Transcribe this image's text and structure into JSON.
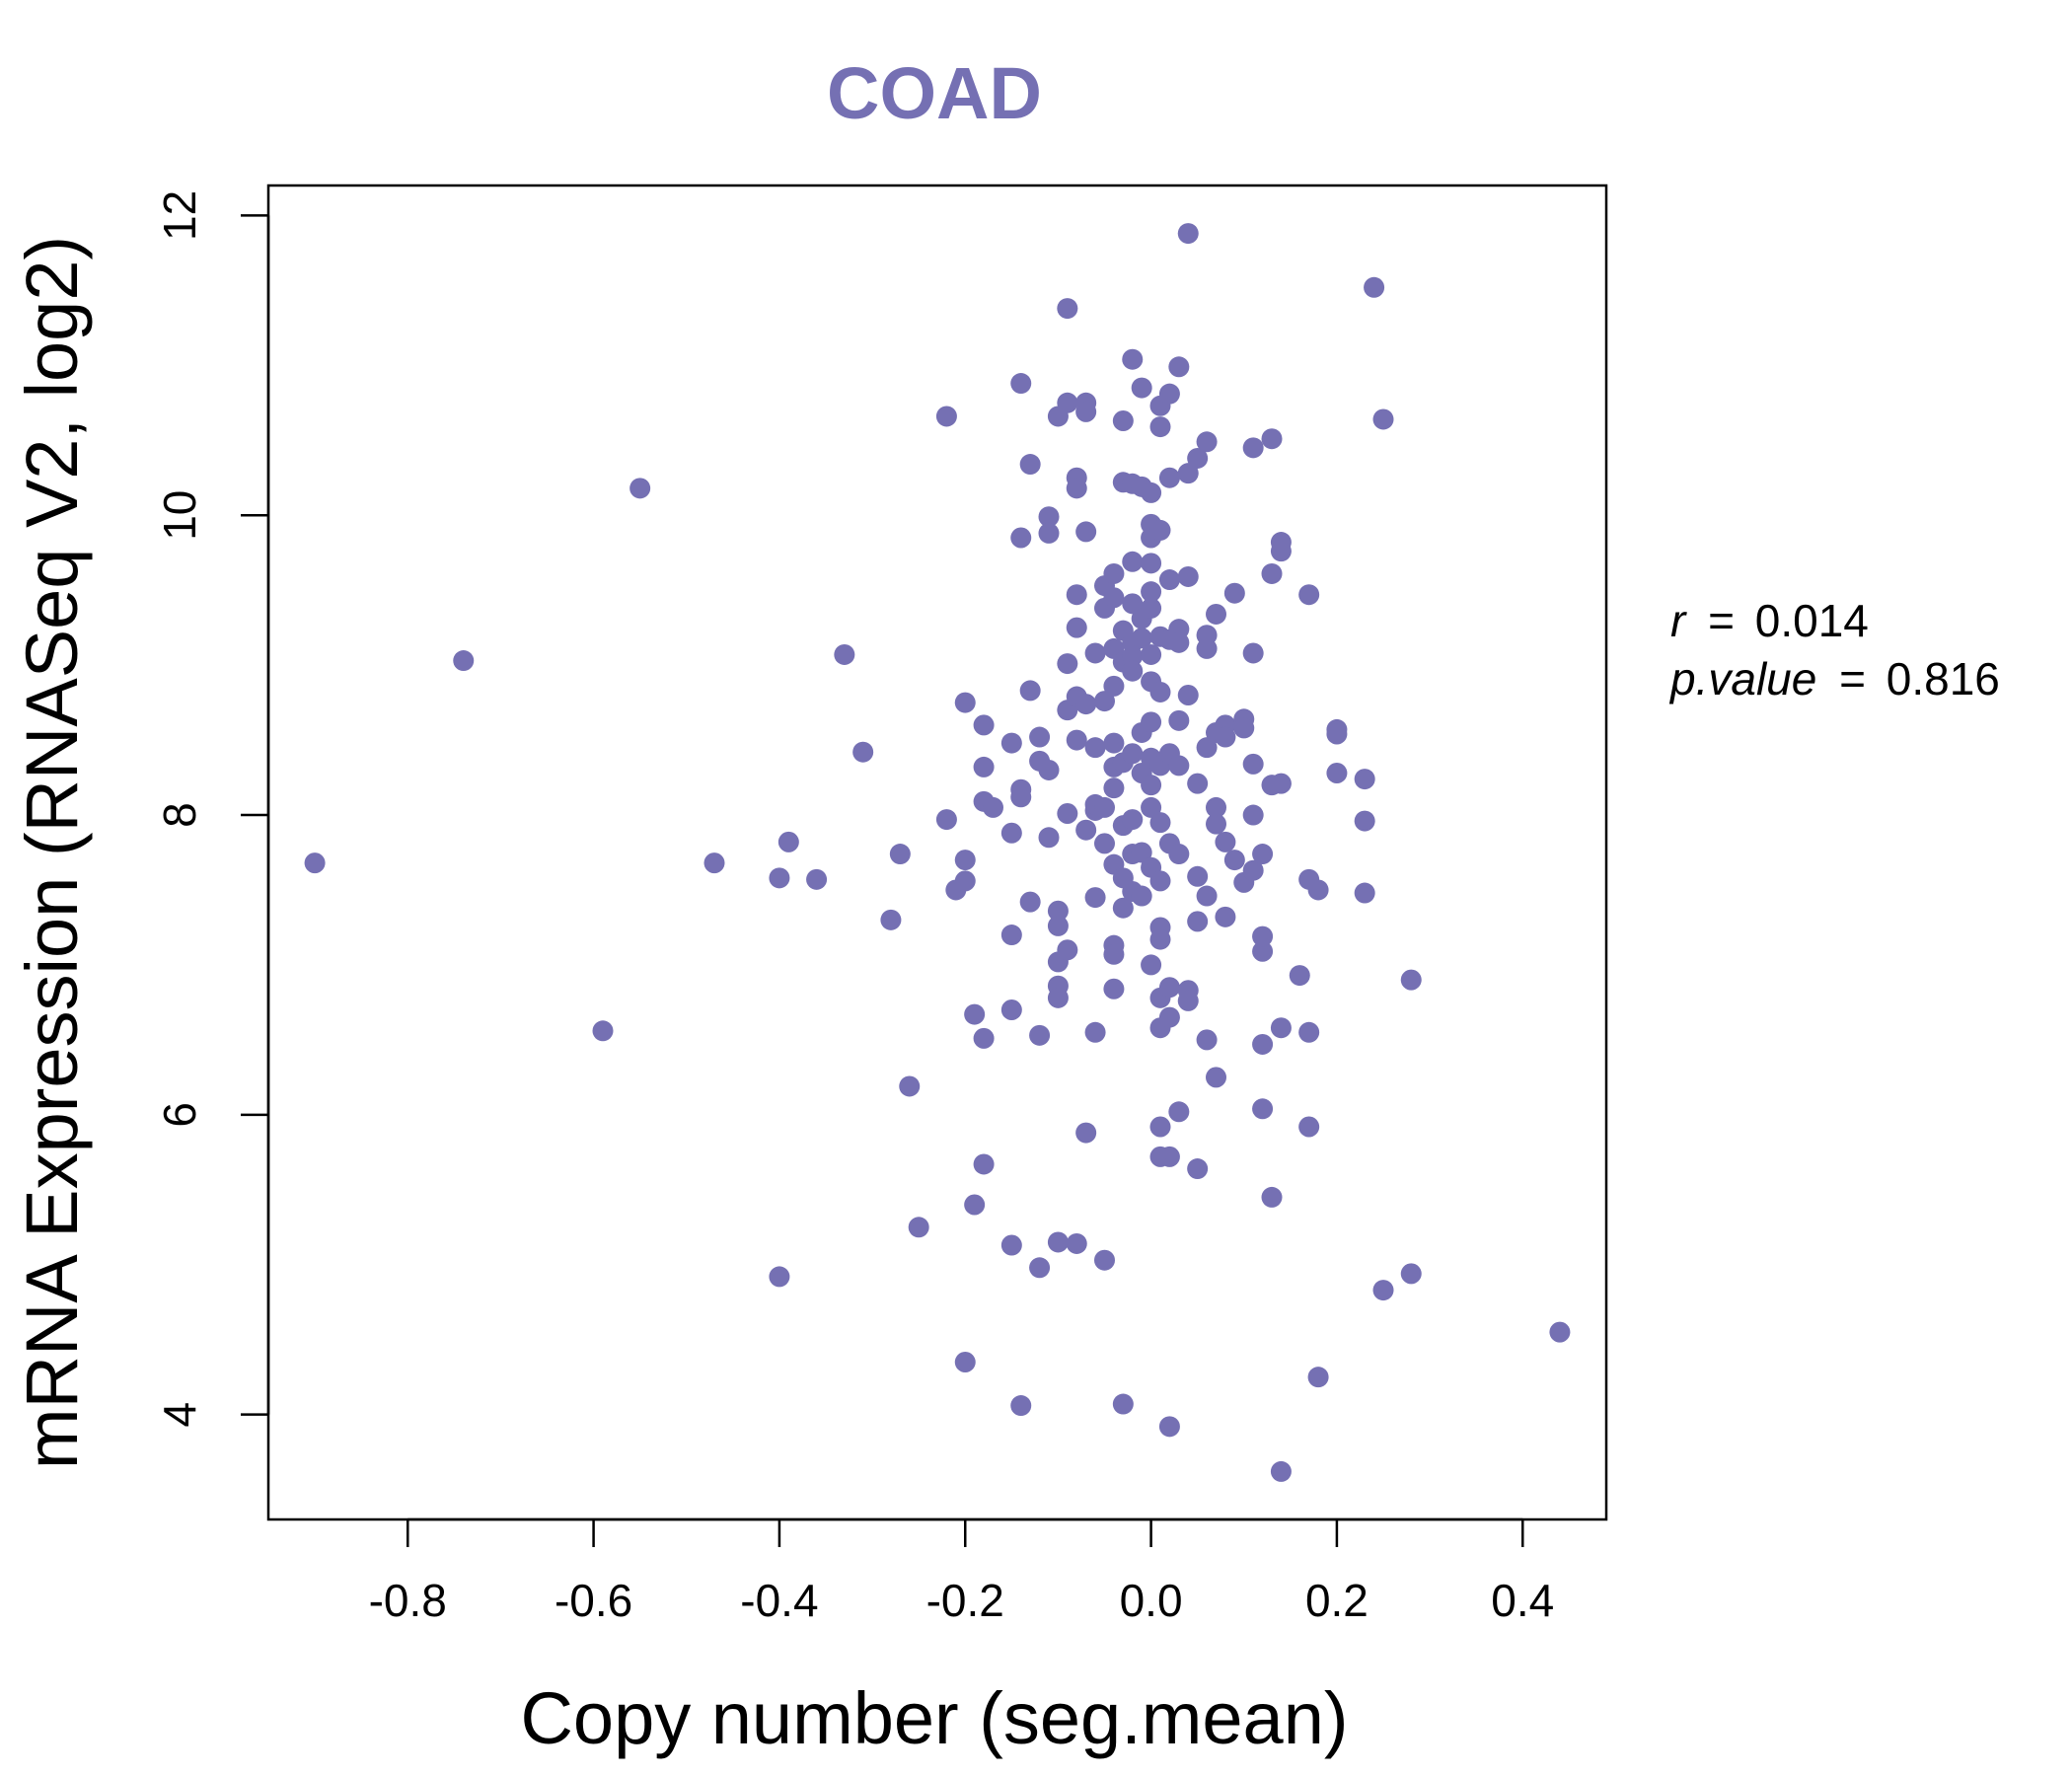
{
  "chart_data": {
    "type": "scatter",
    "title": "COAD",
    "xlabel": "Copy number (seg.mean)",
    "ylabel": "mRNA Expression (RNASeq V2, log2)",
    "xlim": [
      -0.95,
      0.49
    ],
    "ylim": [
      3.3,
      12.2
    ],
    "x_ticks": [
      -0.8,
      -0.6,
      -0.4,
      -0.2,
      0.0,
      0.2,
      0.4
    ],
    "x_tick_labels": [
      "-0.8",
      "-0.6",
      "-0.4",
      "-0.2",
      "0.0",
      "0.2",
      "0.4"
    ],
    "y_ticks": [
      4,
      6,
      8,
      10,
      12
    ],
    "y_tick_labels": [
      "4",
      "6",
      "8",
      "10",
      "12"
    ],
    "point_color": "#7570b3",
    "stats": {
      "r_label": "r",
      "r_value": "0.014",
      "p_label": "p.value",
      "p_value": "0.816",
      "equals": "="
    },
    "points": [
      [
        -0.9,
        7.68
      ],
      [
        -0.74,
        9.03
      ],
      [
        -0.59,
        6.56
      ],
      [
        -0.55,
        10.18
      ],
      [
        -0.47,
        7.68
      ],
      [
        -0.4,
        7.58
      ],
      [
        -0.4,
        4.92
      ],
      [
        -0.39,
        7.82
      ],
      [
        -0.36,
        7.57
      ],
      [
        -0.33,
        9.07
      ],
      [
        -0.31,
        8.42
      ],
      [
        -0.28,
        7.3
      ],
      [
        -0.27,
        7.74
      ],
      [
        -0.26,
        6.19
      ],
      [
        -0.25,
        5.25
      ],
      [
        -0.22,
        10.66
      ],
      [
        -0.22,
        7.97
      ],
      [
        -0.21,
        7.5
      ],
      [
        -0.2,
        7.56
      ],
      [
        -0.2,
        7.7
      ],
      [
        -0.2,
        8.75
      ],
      [
        -0.2,
        4.35
      ],
      [
        -0.19,
        6.67
      ],
      [
        -0.19,
        5.4
      ],
      [
        -0.18,
        8.6
      ],
      [
        -0.18,
        8.32
      ],
      [
        -0.18,
        8.09
      ],
      [
        -0.18,
        6.51
      ],
      [
        -0.18,
        5.67
      ],
      [
        -0.17,
        8.05
      ],
      [
        -0.15,
        8.48
      ],
      [
        -0.15,
        7.88
      ],
      [
        -0.15,
        7.2
      ],
      [
        -0.15,
        6.7
      ],
      [
        -0.15,
        5.13
      ],
      [
        -0.14,
        10.88
      ],
      [
        -0.14,
        9.85
      ],
      [
        -0.14,
        8.17
      ],
      [
        -0.14,
        8.12
      ],
      [
        -0.14,
        4.06
      ],
      [
        -0.13,
        10.34
      ],
      [
        -0.13,
        8.83
      ],
      [
        -0.13,
        7.42
      ],
      [
        -0.12,
        8.52
      ],
      [
        -0.12,
        8.36
      ],
      [
        -0.12,
        6.53
      ],
      [
        -0.12,
        4.98
      ],
      [
        -0.11,
        9.99
      ],
      [
        -0.11,
        9.88
      ],
      [
        -0.11,
        8.3
      ],
      [
        -0.11,
        7.85
      ],
      [
        -0.1,
        7.36
      ],
      [
        -0.1,
        7.26
      ],
      [
        -0.1,
        7.02
      ],
      [
        -0.1,
        6.86
      ],
      [
        -0.1,
        6.78
      ],
      [
        -0.1,
        5.15
      ],
      [
        -0.1,
        10.66
      ],
      [
        -0.09,
        11.38
      ],
      [
        -0.09,
        10.75
      ],
      [
        -0.09,
        9.01
      ],
      [
        -0.09,
        8.7
      ],
      [
        -0.09,
        8.01
      ],
      [
        -0.09,
        7.1
      ],
      [
        -0.08,
        10.25
      ],
      [
        -0.08,
        10.18
      ],
      [
        -0.08,
        9.25
      ],
      [
        -0.08,
        9.47
      ],
      [
        -0.08,
        8.79
      ],
      [
        -0.08,
        8.5
      ],
      [
        -0.08,
        5.14
      ],
      [
        -0.07,
        10.75
      ],
      [
        -0.07,
        10.69
      ],
      [
        -0.07,
        9.89
      ],
      [
        -0.07,
        8.74
      ],
      [
        -0.07,
        7.9
      ],
      [
        -0.07,
        5.88
      ],
      [
        -0.06,
        9.08
      ],
      [
        -0.06,
        8.03
      ],
      [
        -0.06,
        7.45
      ],
      [
        -0.06,
        6.55
      ],
      [
        -0.06,
        8.07
      ],
      [
        -0.06,
        8.45
      ],
      [
        -0.05,
        9.53
      ],
      [
        -0.05,
        9.38
      ],
      [
        -0.05,
        8.76
      ],
      [
        -0.05,
        8.05
      ],
      [
        -0.05,
        7.81
      ],
      [
        -0.05,
        5.03
      ],
      [
        -0.04,
        9.61
      ],
      [
        -0.04,
        9.45
      ],
      [
        -0.04,
        9.11
      ],
      [
        -0.04,
        8.86
      ],
      [
        -0.04,
        8.48
      ],
      [
        -0.04,
        8.32
      ],
      [
        -0.04,
        8.18
      ],
      [
        -0.04,
        7.67
      ],
      [
        -0.04,
        7.13
      ],
      [
        -0.04,
        7.07
      ],
      [
        -0.04,
        6.84
      ],
      [
        -0.03,
        10.63
      ],
      [
        -0.03,
        10.22
      ],
      [
        -0.03,
        9.23
      ],
      [
        -0.03,
        9.02
      ],
      [
        -0.03,
        8.35
      ],
      [
        -0.03,
        7.93
      ],
      [
        -0.03,
        7.58
      ],
      [
        -0.03,
        7.38
      ],
      [
        -0.03,
        4.07
      ],
      [
        -0.02,
        11.04
      ],
      [
        -0.02,
        10.21
      ],
      [
        -0.02,
        9.69
      ],
      [
        -0.02,
        9.41
      ],
      [
        -0.02,
        9.15
      ],
      [
        -0.02,
        9.06
      ],
      [
        -0.02,
        8.96
      ],
      [
        -0.02,
        8.41
      ],
      [
        -0.02,
        7.97
      ],
      [
        -0.02,
        7.74
      ],
      [
        -0.02,
        7.49
      ],
      [
        -0.01,
        10.85
      ],
      [
        -0.01,
        10.19
      ],
      [
        -0.01,
        9.31
      ],
      [
        -0.01,
        9.18
      ],
      [
        -0.01,
        8.55
      ],
      [
        -0.01,
        8.28
      ],
      [
        -0.01,
        7.75
      ],
      [
        -0.01,
        7.46
      ],
      [
        0.0,
        10.15
      ],
      [
        0.0,
        9.94
      ],
      [
        0.0,
        9.85
      ],
      [
        0.0,
        9.68
      ],
      [
        0.0,
        9.49
      ],
      [
        0.0,
        9.38
      ],
      [
        0.0,
        9.07
      ],
      [
        0.0,
        8.89
      ],
      [
        0.0,
        8.62
      ],
      [
        0.0,
        8.38
      ],
      [
        0.0,
        8.2
      ],
      [
        0.0,
        8.05
      ],
      [
        0.0,
        7.65
      ],
      [
        0.0,
        7.0
      ],
      [
        0.01,
        10.73
      ],
      [
        0.01,
        10.59
      ],
      [
        0.01,
        9.9
      ],
      [
        0.01,
        9.19
      ],
      [
        0.01,
        8.82
      ],
      [
        0.01,
        8.33
      ],
      [
        0.01,
        7.95
      ],
      [
        0.01,
        7.56
      ],
      [
        0.01,
        7.25
      ],
      [
        0.01,
        7.17
      ],
      [
        0.01,
        6.78
      ],
      [
        0.01,
        6.58
      ],
      [
        0.01,
        5.92
      ],
      [
        0.01,
        5.72
      ],
      [
        0.02,
        10.81
      ],
      [
        0.02,
        10.25
      ],
      [
        0.02,
        9.57
      ],
      [
        0.02,
        9.17
      ],
      [
        0.02,
        8.41
      ],
      [
        0.02,
        7.81
      ],
      [
        0.02,
        6.85
      ],
      [
        0.02,
        6.65
      ],
      [
        0.02,
        5.72
      ],
      [
        0.02,
        3.92
      ],
      [
        0.03,
        10.99
      ],
      [
        0.03,
        9.24
      ],
      [
        0.03,
        9.15
      ],
      [
        0.03,
        8.63
      ],
      [
        0.03,
        8.33
      ],
      [
        0.03,
        7.74
      ],
      [
        0.03,
        6.02
      ],
      [
        0.04,
        11.88
      ],
      [
        0.04,
        10.28
      ],
      [
        0.04,
        9.59
      ],
      [
        0.04,
        8.8
      ],
      [
        0.04,
        6.83
      ],
      [
        0.04,
        6.76
      ],
      [
        0.05,
        10.38
      ],
      [
        0.05,
        8.21
      ],
      [
        0.05,
        7.59
      ],
      [
        0.05,
        7.29
      ],
      [
        0.05,
        5.64
      ],
      [
        0.06,
        10.49
      ],
      [
        0.06,
        9.2
      ],
      [
        0.06,
        9.11
      ],
      [
        0.06,
        8.45
      ],
      [
        0.06,
        7.46
      ],
      [
        0.06,
        6.5
      ],
      [
        0.07,
        6.25
      ],
      [
        0.07,
        9.34
      ],
      [
        0.07,
        8.55
      ],
      [
        0.07,
        8.05
      ],
      [
        0.07,
        7.94
      ],
      [
        0.08,
        8.6
      ],
      [
        0.08,
        8.52
      ],
      [
        0.08,
        7.82
      ],
      [
        0.08,
        7.32
      ],
      [
        0.09,
        9.48
      ],
      [
        0.09,
        7.7
      ],
      [
        0.1,
        8.64
      ],
      [
        0.1,
        8.58
      ],
      [
        0.1,
        7.55
      ],
      [
        0.11,
        10.45
      ],
      [
        0.11,
        8.34
      ],
      [
        0.11,
        7.63
      ],
      [
        0.11,
        9.08
      ],
      [
        0.11,
        8.0
      ],
      [
        0.12,
        7.74
      ],
      [
        0.12,
        7.09
      ],
      [
        0.12,
        7.19
      ],
      [
        0.12,
        6.47
      ],
      [
        0.12,
        6.04
      ],
      [
        0.13,
        10.51
      ],
      [
        0.13,
        9.61
      ],
      [
        0.13,
        8.2
      ],
      [
        0.13,
        5.45
      ],
      [
        0.14,
        9.76
      ],
      [
        0.14,
        9.82
      ],
      [
        0.14,
        8.21
      ],
      [
        0.14,
        6.58
      ],
      [
        0.14,
        3.62
      ],
      [
        0.16,
        6.93
      ],
      [
        0.17,
        9.47
      ],
      [
        0.17,
        7.57
      ],
      [
        0.17,
        6.55
      ],
      [
        0.17,
        5.92
      ],
      [
        0.18,
        7.5
      ],
      [
        0.18,
        4.25
      ],
      [
        0.2,
        8.57
      ],
      [
        0.2,
        8.54
      ],
      [
        0.2,
        8.28
      ],
      [
        0.23,
        8.24
      ],
      [
        0.23,
        7.96
      ],
      [
        0.23,
        7.48
      ],
      [
        0.24,
        11.52
      ],
      [
        0.25,
        10.64
      ],
      [
        0.25,
        4.83
      ],
      [
        0.28,
        6.9
      ],
      [
        0.28,
        4.94
      ],
      [
        0.44,
        4.55
      ]
    ]
  }
}
